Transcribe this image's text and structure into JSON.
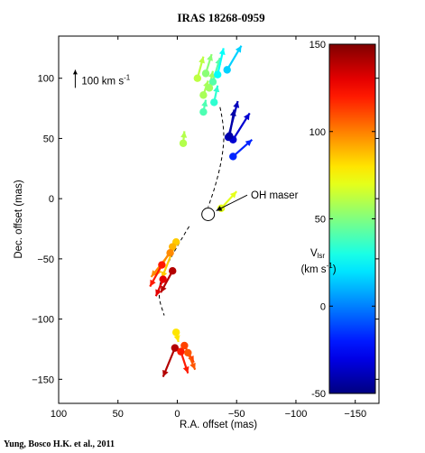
{
  "chart_data": {
    "type": "scatter",
    "title": "IRAS 18268-0959",
    "xlabel": "R.A. offset (mas)",
    "ylabel": "Dec. offset (mas)",
    "xlim": [
      100,
      -170
    ],
    "ylim": [
      -170,
      135
    ],
    "x_reversed": true,
    "x_ticks": [
      100,
      50,
      0,
      -50,
      -100,
      -150
    ],
    "x_tick_labels": [
      "100",
      "50",
      "0",
      "−50",
      "−100",
      "−150"
    ],
    "y_ticks": [
      100,
      50,
      0,
      -50,
      -100,
      -150
    ],
    "y_tick_labels": [
      "100",
      "50",
      "0",
      "−50",
      "−100",
      "−150"
    ],
    "grid": false,
    "colorbar": {
      "label_line1": "V",
      "label_sub": "lsr",
      "label_line2": "(km s",
      "label_sup": "-1",
      "label_close": ")",
      "range": [
        -50,
        150
      ],
      "ticks": [
        150,
        100,
        50,
        0,
        -50
      ],
      "tick_labels": [
        "150",
        "100",
        "50",
        "0",
        "-50"
      ],
      "colormap": "jet"
    },
    "scale_arrow": {
      "label": "100 km s",
      "label_sup": "-1",
      "ra": 86,
      "dec": 92,
      "length_kms": 100
    },
    "oh_maser": {
      "label": "OH maser",
      "ra": -26,
      "dec": -13,
      "label_ra": -62,
      "label_dec": 3
    },
    "arcs": [
      [
        [
          -36,
          76
        ],
        [
          -40,
          58
        ],
        [
          -38,
          34
        ],
        [
          -32,
          10
        ],
        [
          -26,
          -7
        ]
      ],
      [
        [
          -10,
          -23
        ],
        [
          -2,
          -36
        ],
        [
          7,
          -52
        ],
        [
          14,
          -66
        ],
        [
          16,
          -82
        ],
        [
          11,
          -97
        ]
      ]
    ],
    "features": [
      {
        "ra": -17,
        "dec": 100,
        "vlsr": 62,
        "dra": -5,
        "ddec": 18
      },
      {
        "ra": -24,
        "dec": 104,
        "vlsr": 52,
        "dra": -5,
        "ddec": 16
      },
      {
        "ra": -30,
        "dec": 97,
        "vlsr": 42,
        "dra": -6,
        "ddec": 20
      },
      {
        "ra": -34,
        "dec": 103,
        "vlsr": 26,
        "dra": -5,
        "ddec": 22
      },
      {
        "ra": -27,
        "dec": 92,
        "vlsr": 56,
        "dra": -3,
        "ddec": 14
      },
      {
        "ra": -22,
        "dec": 86,
        "vlsr": 58,
        "dra": -4,
        "ddec": 12
      },
      {
        "ra": -42,
        "dec": 107,
        "vlsr": 16,
        "dra": -12,
        "ddec": 20
      },
      {
        "ra": -31,
        "dec": 80,
        "vlsr": 34,
        "dra": -3,
        "ddec": 14
      },
      {
        "ra": -22,
        "dec": 72,
        "vlsr": 40,
        "dra": -2,
        "ddec": 10
      },
      {
        "ra": -43,
        "dec": 51,
        "vlsr": -38,
        "dra": -8,
        "ddec": 30
      },
      {
        "ra": -47,
        "dec": 49,
        "vlsr": -34,
        "dra": -14,
        "ddec": 22
      },
      {
        "ra": -44,
        "dec": 52,
        "vlsr": -42,
        "dra": -4,
        "ddec": 22
      },
      {
        "ra": -47,
        "dec": 35,
        "vlsr": -18,
        "dra": -16,
        "ddec": 14
      },
      {
        "ra": -5,
        "dec": 46,
        "vlsr": 60,
        "dra": -1,
        "ddec": 10
      },
      {
        "ra": -37,
        "dec": -8,
        "vlsr": 70,
        "dra": -13,
        "ddec": 14
      },
      {
        "ra": 1,
        "dec": -36,
        "vlsr": 85,
        "dra": 12,
        "ddec": -30
      },
      {
        "ra": 4,
        "dec": -40,
        "vlsr": 90,
        "dra": 14,
        "ddec": -24
      },
      {
        "ra": 6,
        "dec": -45,
        "vlsr": 98,
        "dra": 16,
        "ddec": -20
      },
      {
        "ra": 13,
        "dec": -55,
        "vlsr": 120,
        "dra": 10,
        "ddec": -18
      },
      {
        "ra": 4,
        "dec": -60,
        "vlsr": 140,
        "dra": 10,
        "ddec": -18
      },
      {
        "ra": 12,
        "dec": -67,
        "vlsr": 130,
        "dra": 6,
        "ddec": -14
      },
      {
        "ra": 1,
        "dec": -111,
        "vlsr": 80,
        "dra": -2,
        "ddec": -8
      },
      {
        "ra": 2,
        "dec": -124,
        "vlsr": 140,
        "dra": 10,
        "ddec": -24
      },
      {
        "ra": -3,
        "dec": -127,
        "vlsr": 120,
        "dra": -6,
        "ddec": -18
      },
      {
        "ra": -6,
        "dec": -122,
        "vlsr": 112,
        "dra": -8,
        "ddec": -14
      },
      {
        "ra": -9,
        "dec": -128,
        "vlsr": 108,
        "dra": -6,
        "ddec": -14
      }
    ]
  },
  "credit": "Yung, Bosco H.K. et al., 2011"
}
